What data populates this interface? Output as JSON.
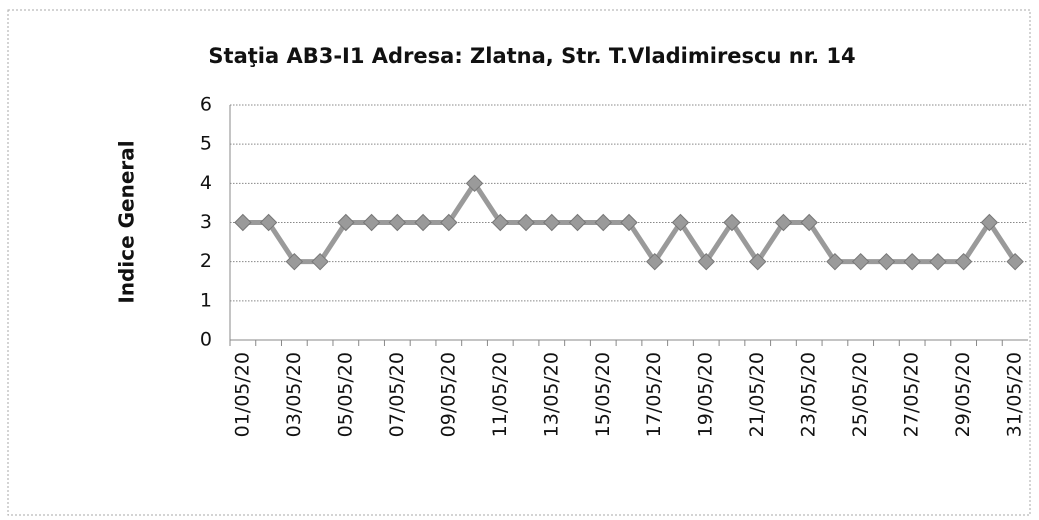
{
  "chart_data": {
    "type": "line",
    "title": "Staţia AB3-I1 Adresa: Zlatna, Str. T.Vladimirescu nr. 14",
    "y_label": "Indice General",
    "categories": [
      "01/05/20",
      null,
      "03/05/20",
      null,
      "05/05/20",
      null,
      "07/05/20",
      null,
      "09/05/20",
      null,
      "11/05/20",
      null,
      "13/05/20",
      null,
      "15/05/20",
      null,
      "17/05/20",
      null,
      "19/05/20",
      null,
      "21/05/20",
      null,
      "23/05/20",
      null,
      "25/05/20",
      null,
      "27/05/20",
      null,
      "29/05/20",
      null,
      "31/05/20"
    ],
    "series": [
      {
        "name": "Indice General",
        "color": "#9a9a9a",
        "values": [
          3,
          3,
          2,
          2,
          3,
          3,
          3,
          3,
          3,
          4,
          3,
          3,
          3,
          3,
          3,
          3,
          2,
          3,
          2,
          3,
          2,
          3,
          3,
          2,
          2,
          2,
          2,
          2,
          2,
          3,
          2
        ]
      }
    ],
    "ylim": [
      0,
      6
    ],
    "yticks": [
      0,
      1,
      2,
      3,
      4,
      5,
      6
    ],
    "grid": true
  }
}
